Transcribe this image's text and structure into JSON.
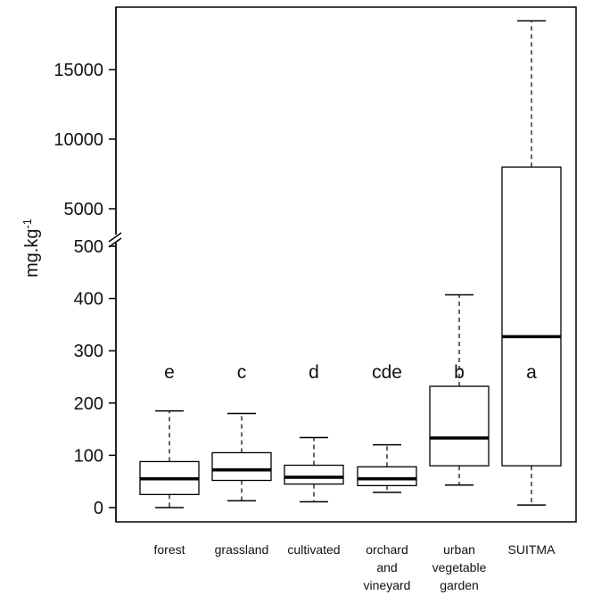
{
  "chart_data": {
    "type": "boxplot",
    "ylabel": "mg.kg",
    "ylabel_superscript": "-1",
    "y_axis": {
      "broken": true,
      "lower_segment": {
        "range": [
          0,
          500
        ],
        "ticks": [
          "0",
          "100",
          "200",
          "300",
          "400",
          "500"
        ],
        "tick_values": [
          0,
          100,
          200,
          300,
          400,
          500
        ]
      },
      "upper_segment": {
        "range": [
          500,
          18700
        ],
        "ticks": [
          "5000",
          "10000",
          "15000"
        ],
        "tick_values": [
          5000,
          10000,
          15000
        ]
      }
    },
    "categories": [
      {
        "lines": [
          "forest"
        ],
        "letter": "e",
        "whisker_low": 0,
        "q1": 25,
        "median": 55,
        "q3": 88,
        "whisker_high": 185
      },
      {
        "lines": [
          "grassland"
        ],
        "letter": "c",
        "whisker_low": 13,
        "q1": 52,
        "median": 72,
        "q3": 105,
        "whisker_high": 180
      },
      {
        "lines": [
          "cultivated"
        ],
        "letter": "d",
        "whisker_low": 11,
        "q1": 45,
        "median": 58,
        "q3": 81,
        "whisker_high": 134
      },
      {
        "lines": [
          "orchard",
          "and",
          "vineyard"
        ],
        "letter": "cde",
        "whisker_low": 29,
        "q1": 42,
        "median": 55,
        "q3": 78,
        "whisker_high": 120
      },
      {
        "lines": [
          "urban",
          "vegetable",
          "garden"
        ],
        "letter": "b",
        "whisker_low": 43,
        "q1": 80,
        "median": 133,
        "q3": 232,
        "whisker_high": 407
      },
      {
        "lines": [
          "SUITMA"
        ],
        "letter": "a",
        "whisker_low": 5,
        "q1": 80,
        "median": 327,
        "q3": 8000,
        "whisker_high": 18500
      }
    ],
    "grid": false,
    "legend": "none"
  }
}
